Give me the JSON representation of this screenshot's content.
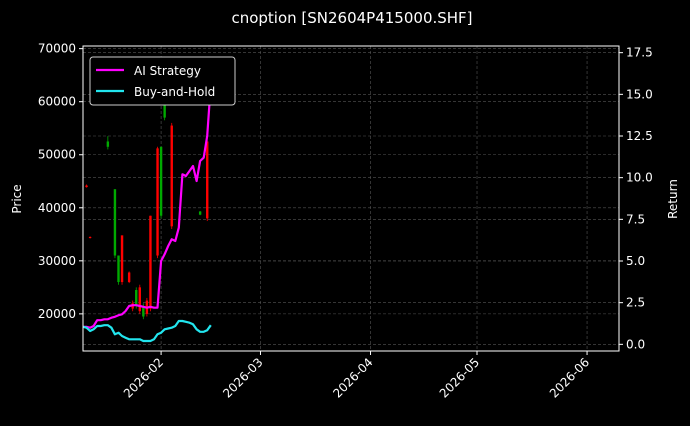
{
  "chart_data": {
    "type": "line",
    "title": "cnoption [SN2604P415000.SHF]",
    "ylabel": "Price",
    "y2label": "Return",
    "x_range": [
      "2026-01-10",
      "2026-06-10"
    ],
    "ylim": [
      13000,
      70500
    ],
    "y2lim": [
      -0.4,
      17.9
    ],
    "y_ticks": [
      20000,
      30000,
      40000,
      50000,
      60000,
      70000
    ],
    "y2_ticks": [
      "0.0",
      "2.5",
      "5.0",
      "7.5",
      "10.0",
      "12.5",
      "15.0",
      "17.5"
    ],
    "x_ticks": [
      "2026-02",
      "2026-03",
      "2026-04",
      "2026-05",
      "2026-06"
    ],
    "grid": true,
    "legend_placement": "top-left",
    "series": [
      {
        "name": "AI Strategy",
        "color": "#ff00ff",
        "axis": "right",
        "x": [
          "2026-01-10",
          "2026-01-11",
          "2026-01-12",
          "2026-01-13",
          "2026-01-14",
          "2026-01-15",
          "2026-01-16",
          "2026-01-17",
          "2026-01-18",
          "2026-01-19",
          "2026-01-20",
          "2026-01-21",
          "2026-01-22",
          "2026-01-23",
          "2026-01-24",
          "2026-01-25",
          "2026-01-26",
          "2026-01-27",
          "2026-01-28",
          "2026-01-29",
          "2026-01-30",
          "2026-01-31",
          "2026-02-01",
          "2026-02-02",
          "2026-02-03",
          "2026-02-04",
          "2026-02-05",
          "2026-02-06",
          "2026-02-07",
          "2026-02-08",
          "2026-02-09",
          "2026-02-10",
          "2026-02-11",
          "2026-02-12",
          "2026-02-13",
          "2026-02-14",
          "2026-02-15"
        ],
        "values": [
          1.05,
          1.05,
          1.0,
          1.1,
          1.45,
          1.45,
          1.5,
          1.5,
          1.6,
          1.65,
          1.75,
          1.8,
          2.0,
          2.3,
          2.35,
          2.35,
          2.3,
          2.25,
          2.2,
          2.25,
          2.2,
          2.2,
          5.0,
          5.4,
          5.9,
          6.3,
          6.2,
          7.0,
          10.2,
          10.1,
          10.4,
          10.7,
          9.8,
          11.0,
          11.2,
          12.5,
          15.6
        ]
      },
      {
        "name": "Buy-and-Hold",
        "color": "#22e5ee",
        "axis": "right",
        "x": [
          "2026-01-10",
          "2026-01-11",
          "2026-01-12",
          "2026-01-13",
          "2026-01-14",
          "2026-01-15",
          "2026-01-16",
          "2026-01-17",
          "2026-01-18",
          "2026-01-19",
          "2026-01-20",
          "2026-01-21",
          "2026-01-22",
          "2026-01-23",
          "2026-01-24",
          "2026-01-25",
          "2026-01-26",
          "2026-01-27",
          "2026-01-28",
          "2026-01-29",
          "2026-01-30",
          "2026-01-31",
          "2026-02-01",
          "2026-02-02",
          "2026-02-03",
          "2026-02-04",
          "2026-02-05",
          "2026-02-06",
          "2026-02-07",
          "2026-02-08",
          "2026-02-09",
          "2026-02-10",
          "2026-02-11",
          "2026-02-12",
          "2026-02-13",
          "2026-02-14",
          "2026-02-15"
        ],
        "values": [
          1.05,
          1.0,
          0.8,
          0.9,
          1.1,
          1.1,
          1.15,
          1.15,
          1.0,
          0.6,
          0.7,
          0.5,
          0.4,
          0.3,
          0.3,
          0.3,
          0.3,
          0.2,
          0.2,
          0.2,
          0.3,
          0.6,
          0.7,
          0.9,
          0.95,
          1.0,
          1.1,
          1.4,
          1.4,
          1.35,
          1.3,
          1.2,
          0.9,
          0.75,
          0.75,
          0.85,
          1.15
        ]
      }
    ],
    "candles": [
      {
        "date": "2026-01-11",
        "open": 44200,
        "close": 43900,
        "high": 44400,
        "low": 43800,
        "color": "#ff0000"
      },
      {
        "date": "2026-01-12",
        "open": 34500,
        "close": 34300,
        "high": 34600,
        "low": 34200,
        "color": "#ff0000"
      },
      {
        "date": "2026-01-17",
        "open": 51500,
        "close": 52500,
        "high": 53500,
        "low": 51000,
        "color": "#00aa00"
      },
      {
        "date": "2026-01-19",
        "open": 31000,
        "close": 43500,
        "high": 43500,
        "low": 30500,
        "color": "#00aa00"
      },
      {
        "date": "2026-01-20",
        "open": 26000,
        "close": 31000,
        "high": 31000,
        "low": 25500,
        "color": "#00aa00"
      },
      {
        "date": "2026-01-21",
        "open": 34800,
        "close": 26000,
        "high": 34800,
        "low": 25500,
        "color": "#ff0000"
      },
      {
        "date": "2026-01-23",
        "open": 27800,
        "close": 26000,
        "high": 28000,
        "low": 25800,
        "color": "#ff0000"
      },
      {
        "date": "2026-01-24",
        "open": 22000,
        "close": 21000,
        "high": 22500,
        "low": 20500,
        "color": "#ff0000"
      },
      {
        "date": "2026-01-25",
        "open": 21500,
        "close": 24500,
        "high": 25000,
        "low": 21000,
        "color": "#00aa00"
      },
      {
        "date": "2026-01-26",
        "open": 25000,
        "close": 20500,
        "high": 25500,
        "low": 20000,
        "color": "#ff0000"
      },
      {
        "date": "2026-01-27",
        "open": 19500,
        "close": 21500,
        "high": 22000,
        "low": 19000,
        "color": "#00aa00"
      },
      {
        "date": "2026-01-28",
        "open": 22500,
        "close": 20000,
        "high": 23000,
        "low": 19500,
        "color": "#ff0000"
      },
      {
        "date": "2026-01-29",
        "open": 38500,
        "close": 21000,
        "high": 38500,
        "low": 20500,
        "color": "#ff0000"
      },
      {
        "date": "2026-01-31",
        "open": 51200,
        "close": 31000,
        "high": 51500,
        "low": 30500,
        "color": "#ff0000"
      },
      {
        "date": "2026-02-01",
        "open": 38500,
        "close": 51500,
        "high": 51500,
        "low": 38000,
        "color": "#00aa00"
      },
      {
        "date": "2026-02-02",
        "open": 57000,
        "close": 65500,
        "high": 66000,
        "low": 56500,
        "color": "#00aa00"
      },
      {
        "date": "2026-02-04",
        "open": 36500,
        "close": 55500,
        "high": 56000,
        "low": 36000,
        "color": "#ff0000"
      },
      {
        "date": "2026-02-12",
        "open": 39300,
        "close": 38700,
        "high": 39400,
        "low": 38600,
        "color": "#00aa00"
      },
      {
        "date": "2026-02-14",
        "open": 52500,
        "close": 38000,
        "high": 52800,
        "low": 37500,
        "color": "#ff0000"
      }
    ]
  }
}
